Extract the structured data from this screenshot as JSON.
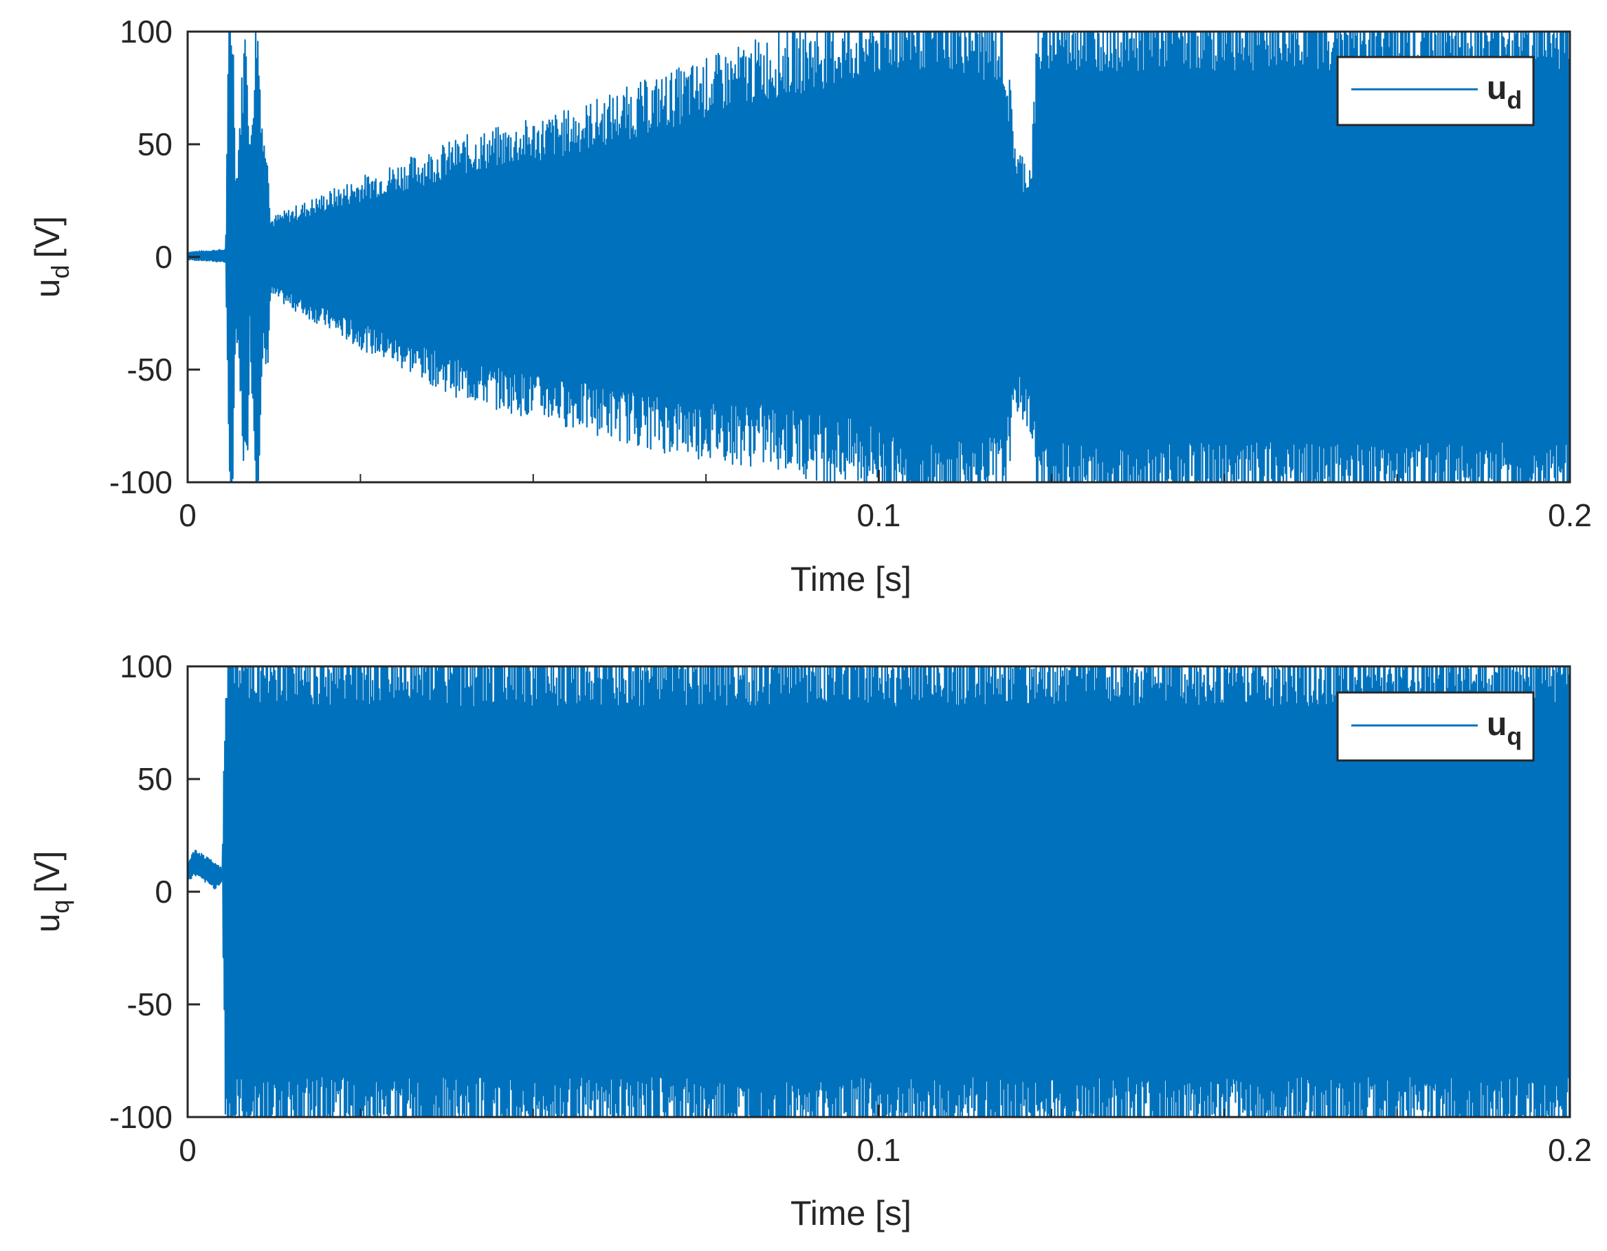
{
  "chart_data": [
    {
      "type": "line",
      "xlabel": "Time [s]",
      "ylabel": "u",
      "ylabel_subscript": "d",
      "ylabel_unit": "[V]",
      "xlim": [
        0,
        0.2
      ],
      "ylim": [
        -100,
        100
      ],
      "x_ticks": [
        0,
        0.1,
        0.2
      ],
      "x_tick_labels": [
        "0",
        "0.1",
        "0.2"
      ],
      "x_minor_ticks": [
        0.025,
        0.05,
        0.075,
        0.125,
        0.15,
        0.175
      ],
      "y_ticks": [
        100,
        50,
        0,
        -50,
        -100
      ],
      "y_tick_labels": [
        "100",
        "50",
        "0",
        "-50",
        "-100"
      ],
      "grid": false,
      "legend": {
        "position": "top-right",
        "label": "u",
        "subscript": "d"
      },
      "series": [
        {
          "name": "ud",
          "color": "#0072BD",
          "x": [
            0.0,
            0.0055,
            0.006,
            0.0065,
            0.007,
            0.0085,
            0.009,
            0.01,
            0.011,
            0.0115,
            0.012,
            0.025,
            0.04,
            0.055,
            0.07,
            0.085,
            0.1,
            0.103,
            0.11,
            0.115,
            0.118,
            0.12,
            0.122,
            0.123,
            0.124,
            0.16,
            0.2
          ],
          "min": [
            -1,
            -2,
            -100,
            -100,
            -30,
            -100,
            -30,
            -100,
            -40,
            -48,
            -15,
            -35,
            -55,
            -65,
            -75,
            -80,
            -90,
            -100,
            -100,
            -95,
            -95,
            -60,
            -70,
            -95,
            -100,
            -100,
            -100
          ],
          "max": [
            2,
            3,
            100,
            100,
            30,
            100,
            40,
            100,
            45,
            50,
            15,
            30,
            45,
            55,
            70,
            85,
            95,
            100,
            100,
            95,
            90,
            40,
            35,
            90,
            100,
            100,
            100
          ]
        }
      ]
    },
    {
      "type": "line",
      "xlabel": "Time [s]",
      "ylabel": "u",
      "ylabel_subscript": "q",
      "ylabel_unit": "[V]",
      "xlim": [
        0,
        0.2
      ],
      "ylim": [
        -100,
        100
      ],
      "x_ticks": [
        0,
        0.1,
        0.2
      ],
      "x_tick_labels": [
        "0",
        "0.1",
        "0.2"
      ],
      "x_minor_ticks": [
        0.025,
        0.05,
        0.075,
        0.125,
        0.15,
        0.175
      ],
      "y_ticks": [
        100,
        50,
        0,
        -50,
        -100
      ],
      "y_tick_labels": [
        "100",
        "50",
        "0",
        "-50",
        "-100"
      ],
      "grid": false,
      "legend": {
        "position": "top-right",
        "label": "u",
        "subscript": "q"
      },
      "series": [
        {
          "name": "uq",
          "color": "#0072BD",
          "x": [
            0.0,
            0.001,
            0.004,
            0.005,
            0.0055,
            0.2
          ],
          "min": [
            5,
            8,
            2,
            5,
            -100,
            -100
          ],
          "max": [
            12,
            18,
            12,
            10,
            100,
            100
          ]
        }
      ]
    }
  ]
}
